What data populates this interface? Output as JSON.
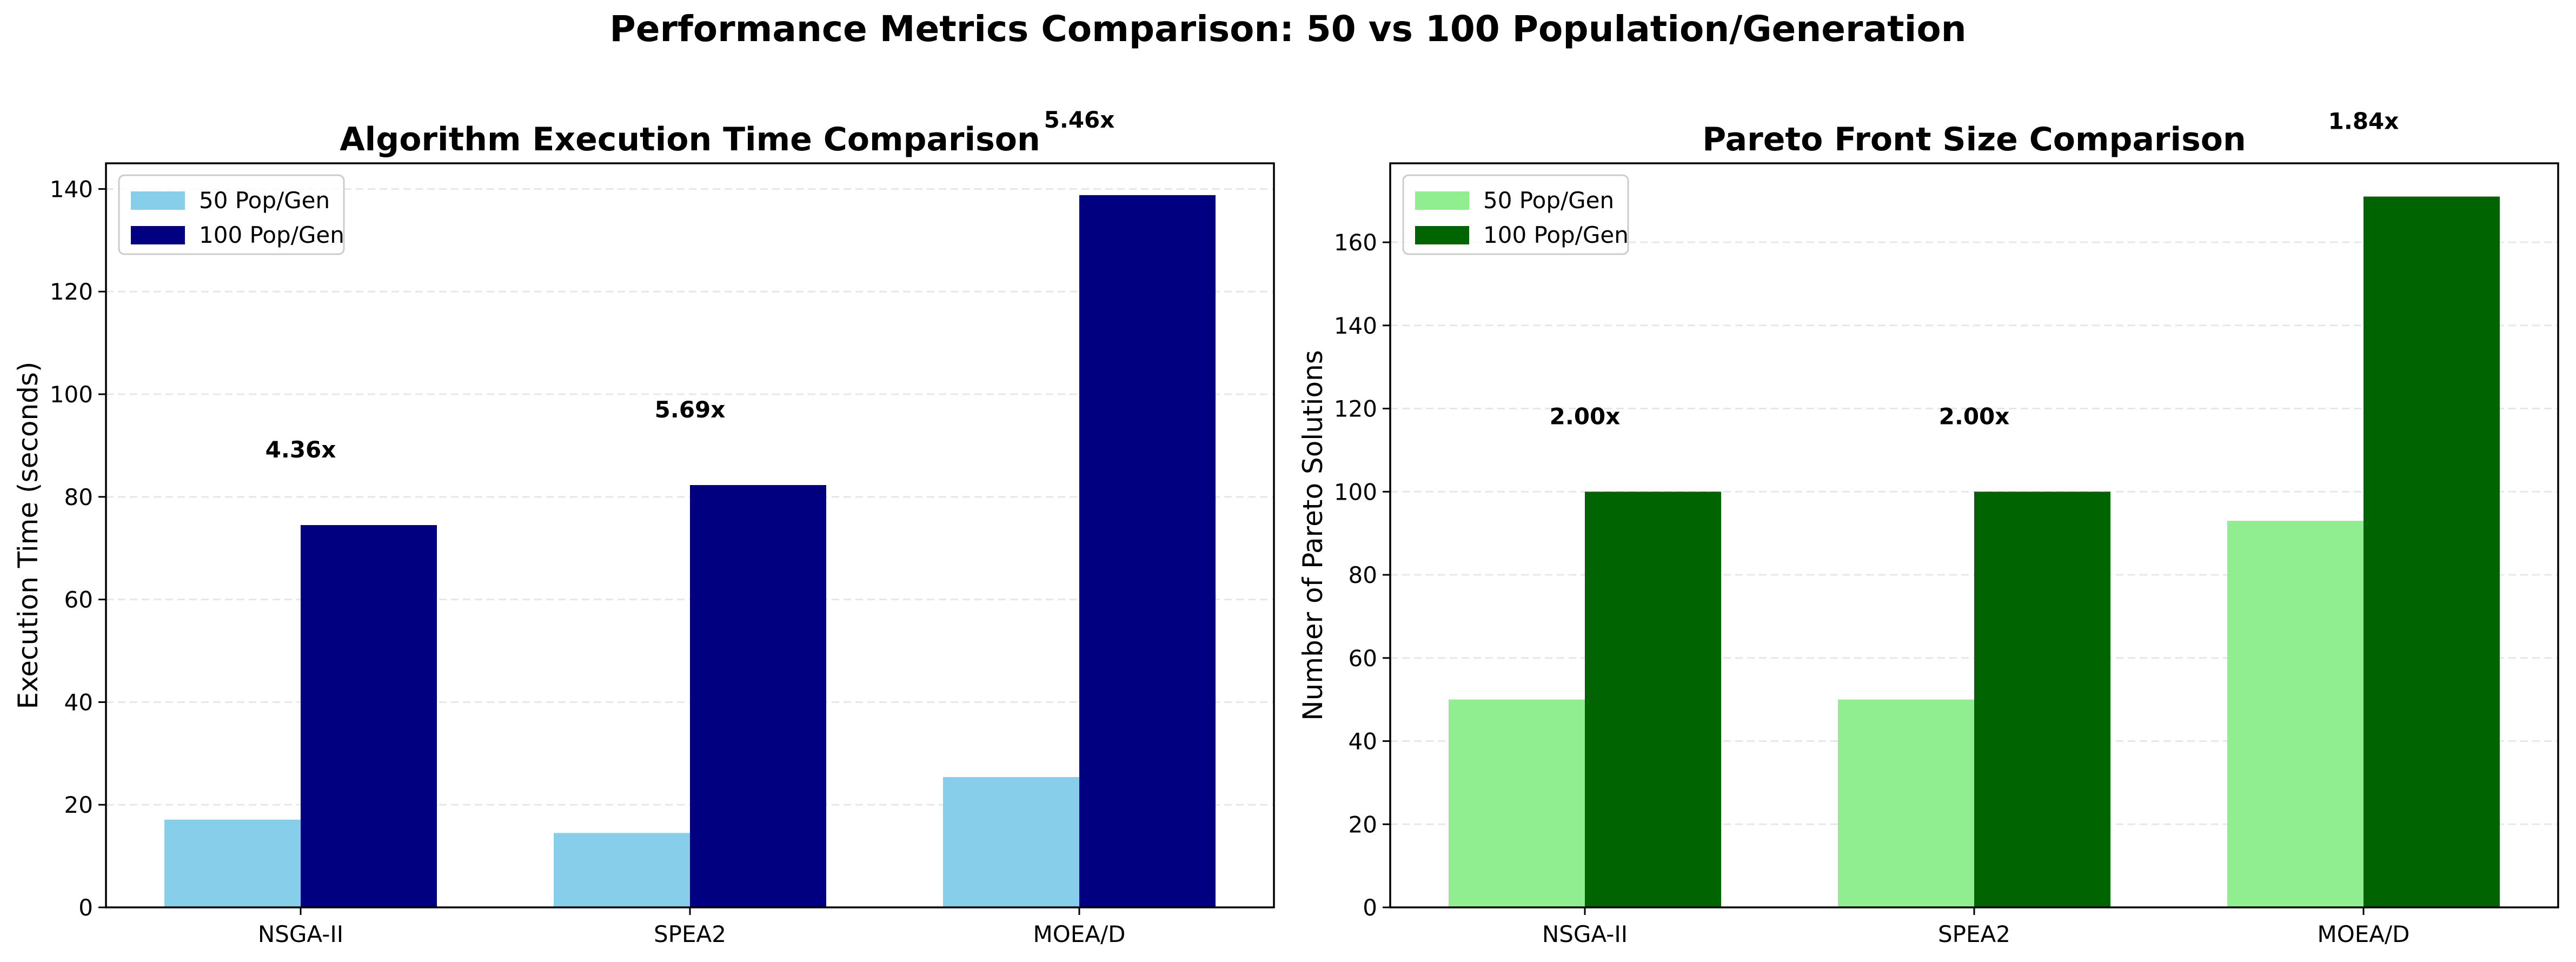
{
  "figure_title": "Performance Metrics Comparison: 50 vs 100 Population/Generation",
  "chart_data": [
    {
      "type": "bar",
      "title": "Algorithm Execution Time Comparison",
      "xlabel": "",
      "ylabel": "Execution Time (seconds)",
      "categories": [
        "NSGA-II",
        "SPEA2",
        "MOEA/D"
      ],
      "ylim": [
        0,
        145
      ],
      "yticks": [
        0,
        20,
        40,
        60,
        80,
        100,
        120,
        140
      ],
      "grid": "y-dashed",
      "legend": "upper-left",
      "series": [
        {
          "name": "50 Pop/Gen",
          "color": "#87ceeb",
          "values": [
            17.1,
            14.5,
            25.4
          ]
        },
        {
          "name": "100 Pop/Gen",
          "color": "#000080",
          "values": [
            74.5,
            82.3,
            138.8
          ]
        }
      ],
      "annotations": [
        "4.36x",
        "5.69x",
        "5.46x"
      ]
    },
    {
      "type": "bar",
      "title": "Pareto Front Size Comparison",
      "xlabel": "",
      "ylabel": "Number of Pareto Solutions",
      "categories": [
        "NSGA-II",
        "SPEA2",
        "MOEA/D"
      ],
      "ylim": [
        0,
        179
      ],
      "yticks": [
        0,
        20,
        40,
        60,
        80,
        100,
        120,
        140,
        160
      ],
      "grid": "y-dashed",
      "legend": "upper-left",
      "series": [
        {
          "name": "50 Pop/Gen",
          "color": "#90ee90",
          "values": [
            50,
            50,
            93
          ]
        },
        {
          "name": "100 Pop/Gen",
          "color": "#006400",
          "values": [
            100,
            100,
            171
          ]
        }
      ],
      "annotations": [
        "2.00x",
        "2.00x",
        "1.84x"
      ]
    }
  ]
}
